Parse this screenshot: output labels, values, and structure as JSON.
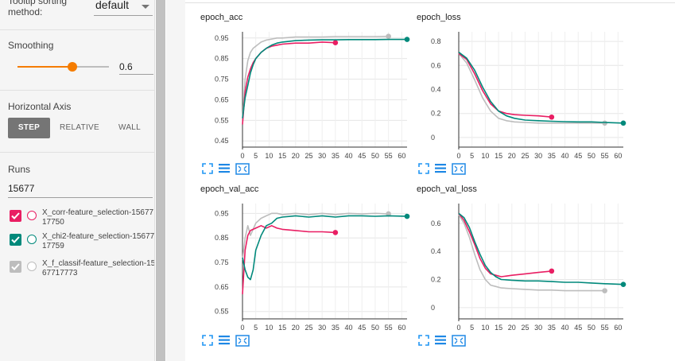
{
  "sidebar": {
    "tooltip_sorting_label": "Tooltip sorting method:",
    "tooltip_sorting_value": "default",
    "smoothing_label": "Smoothing",
    "smoothing_value": "0.6",
    "smoothing_fraction": 0.6,
    "horizontal_axis_label": "Horizontal Axis",
    "axis_buttons": [
      "STEP",
      "RELATIVE",
      "WALL"
    ],
    "axis_selected": "STEP",
    "runs_label": "Runs",
    "runs_filter_value": "15677",
    "runs": [
      {
        "label": "X_corr-feature_selection-1567717750",
        "checked": true,
        "color": "#e91e63"
      },
      {
        "label": "X_chi2-feature_selection-1567717759",
        "checked": true,
        "color": "#00897b"
      },
      {
        "label": "X_f_classif-feature_selection-1567717773",
        "checked": true,
        "color": "#bdbdbd"
      }
    ]
  },
  "colors": {
    "accent": "#f57c00",
    "pink": "#e91e63",
    "teal": "#00897b",
    "grey": "#bdbdbd"
  },
  "tool_icons": [
    "expand-icon",
    "lines-icon",
    "fit-domain-icon"
  ],
  "chart_data": [
    {
      "type": "line",
      "title": "epoch_acc",
      "xlim": [
        0,
        62
      ],
      "ylim": [
        0.42,
        0.98
      ],
      "xticks": [
        0,
        5,
        10,
        15,
        20,
        25,
        30,
        35,
        40,
        45,
        50,
        55,
        60
      ],
      "yticks": [
        0.45,
        0.55,
        0.65,
        0.75,
        0.85,
        0.95
      ],
      "ytick_labels": [
        "0.45",
        "0.55",
        "0.65",
        "0.75",
        "0.85",
        "0.95"
      ],
      "series": [
        {
          "color": "#bdbdbd",
          "x": [
            0,
            1,
            2,
            3,
            4,
            5,
            7,
            9,
            11,
            13,
            15,
            20,
            25,
            30,
            35,
            40,
            45,
            50,
            55
          ],
          "y": [
            0.55,
            0.75,
            0.84,
            0.88,
            0.9,
            0.91,
            0.93,
            0.94,
            0.945,
            0.95,
            0.95,
            0.955,
            0.955,
            0.955,
            0.957,
            0.957,
            0.957,
            0.957,
            0.958
          ]
        },
        {
          "color": "#e91e63",
          "x": [
            0,
            1,
            2,
            3,
            4,
            5,
            7,
            9,
            11,
            13,
            15,
            20,
            25,
            30,
            35
          ],
          "y": [
            0.53,
            0.69,
            0.76,
            0.8,
            0.83,
            0.85,
            0.88,
            0.9,
            0.91,
            0.915,
            0.92,
            0.925,
            0.925,
            0.93,
            0.927
          ]
        },
        {
          "color": "#00897b",
          "x": [
            0,
            1,
            2,
            3,
            4,
            5,
            7,
            9,
            11,
            13,
            15,
            20,
            25,
            30,
            35,
            40,
            45,
            50,
            55,
            62
          ],
          "y": [
            0.56,
            0.66,
            0.72,
            0.78,
            0.82,
            0.85,
            0.88,
            0.9,
            0.915,
            0.925,
            0.93,
            0.937,
            0.94,
            0.941,
            0.941,
            0.942,
            0.942,
            0.942,
            0.943,
            0.943
          ]
        }
      ]
    },
    {
      "type": "line",
      "title": "epoch_loss",
      "xlim": [
        0,
        62
      ],
      "ylim": [
        -0.08,
        0.88
      ],
      "xticks": [
        0,
        5,
        10,
        15,
        20,
        25,
        30,
        35,
        40,
        45,
        50,
        55,
        60
      ],
      "yticks": [
        0,
        0.2,
        0.4,
        0.6,
        0.8
      ],
      "ytick_labels": [
        "0",
        "0.2",
        "0.4",
        "0.6",
        "0.8"
      ],
      "series": [
        {
          "color": "#bdbdbd",
          "x": [
            0,
            3,
            6,
            9,
            12,
            15,
            18,
            21,
            25,
            30,
            35,
            40,
            45,
            50,
            55
          ],
          "y": [
            0.7,
            0.62,
            0.48,
            0.33,
            0.22,
            0.16,
            0.14,
            0.13,
            0.125,
            0.12,
            0.12,
            0.12,
            0.12,
            0.12,
            0.12
          ]
        },
        {
          "color": "#e91e63",
          "x": [
            0,
            3,
            6,
            9,
            12,
            15,
            18,
            21,
            25,
            30,
            35
          ],
          "y": [
            0.7,
            0.65,
            0.53,
            0.39,
            0.28,
            0.22,
            0.2,
            0.19,
            0.185,
            0.18,
            0.17
          ]
        },
        {
          "color": "#00897b",
          "x": [
            0,
            3,
            6,
            9,
            12,
            15,
            18,
            21,
            25,
            30,
            35,
            40,
            45,
            50,
            55,
            62
          ],
          "y": [
            0.71,
            0.66,
            0.56,
            0.42,
            0.3,
            0.22,
            0.18,
            0.16,
            0.145,
            0.14,
            0.135,
            0.132,
            0.13,
            0.13,
            0.125,
            0.12
          ]
        }
      ]
    },
    {
      "type": "line",
      "title": "epoch_val_acc",
      "xlim": [
        0,
        62
      ],
      "ylim": [
        0.52,
        0.99
      ],
      "xticks": [
        0,
        5,
        10,
        15,
        20,
        25,
        30,
        35,
        40,
        45,
        50,
        55,
        60
      ],
      "yticks": [
        0.55,
        0.65,
        0.75,
        0.85,
        0.95
      ],
      "ytick_labels": [
        "0.55",
        "0.65",
        "0.75",
        "0.85",
        "0.95"
      ],
      "series": [
        {
          "color": "#bdbdbd",
          "x": [
            0,
            1,
            2,
            3,
            5,
            7,
            9,
            11,
            13,
            15,
            20,
            25,
            30,
            35,
            40,
            45,
            50,
            55
          ],
          "y": [
            0.76,
            0.85,
            0.9,
            0.86,
            0.91,
            0.93,
            0.94,
            0.95,
            0.95,
            0.945,
            0.95,
            0.945,
            0.95,
            0.945,
            0.95,
            0.948,
            0.95,
            0.948
          ]
        },
        {
          "color": "#e91e63",
          "x": [
            0,
            1,
            2,
            3,
            5,
            7,
            9,
            11,
            13,
            15,
            20,
            25,
            30,
            35
          ],
          "y": [
            0.62,
            0.8,
            0.86,
            0.88,
            0.89,
            0.9,
            0.89,
            0.9,
            0.89,
            0.885,
            0.88,
            0.875,
            0.875,
            0.872
          ]
        },
        {
          "color": "#00897b",
          "x": [
            0,
            1,
            2,
            3,
            4,
            5,
            7,
            9,
            11,
            13,
            15,
            20,
            25,
            30,
            35,
            40,
            45,
            50,
            55,
            62
          ],
          "y": [
            0.77,
            0.72,
            0.69,
            0.68,
            0.72,
            0.8,
            0.86,
            0.9,
            0.91,
            0.93,
            0.935,
            0.94,
            0.935,
            0.94,
            0.935,
            0.94,
            0.94,
            0.938,
            0.94,
            0.938
          ]
        }
      ]
    },
    {
      "type": "line",
      "title": "epoch_val_loss",
      "xlim": [
        0,
        62
      ],
      "ylim": [
        -0.08,
        0.74
      ],
      "xticks": [
        0,
        5,
        10,
        15,
        20,
        25,
        30,
        35,
        40,
        45,
        50,
        55,
        60
      ],
      "yticks": [
        0,
        0.2,
        0.4,
        0.6
      ],
      "ytick_labels": [
        "0",
        "0.2",
        "0.4",
        "0.6"
      ],
      "series": [
        {
          "color": "#bdbdbd",
          "x": [
            0,
            2,
            4,
            6,
            8,
            10,
            12,
            14,
            16,
            20,
            25,
            30,
            35,
            40,
            45,
            50,
            55
          ],
          "y": [
            0.66,
            0.6,
            0.5,
            0.38,
            0.27,
            0.2,
            0.16,
            0.15,
            0.14,
            0.135,
            0.13,
            0.125,
            0.125,
            0.12,
            0.12,
            0.12,
            0.12
          ]
        },
        {
          "color": "#e91e63",
          "x": [
            0,
            2,
            4,
            6,
            8,
            10,
            12,
            14,
            16,
            20,
            25,
            30,
            35
          ],
          "y": [
            0.67,
            0.62,
            0.54,
            0.45,
            0.35,
            0.28,
            0.24,
            0.23,
            0.22,
            0.23,
            0.24,
            0.25,
            0.26
          ]
        },
        {
          "color": "#00897b",
          "x": [
            0,
            2,
            4,
            6,
            8,
            10,
            12,
            14,
            16,
            20,
            25,
            30,
            35,
            40,
            45,
            50,
            55,
            62
          ],
          "y": [
            0.67,
            0.64,
            0.57,
            0.47,
            0.38,
            0.3,
            0.25,
            0.22,
            0.2,
            0.195,
            0.19,
            0.19,
            0.185,
            0.18,
            0.18,
            0.175,
            0.17,
            0.165
          ]
        }
      ]
    }
  ]
}
